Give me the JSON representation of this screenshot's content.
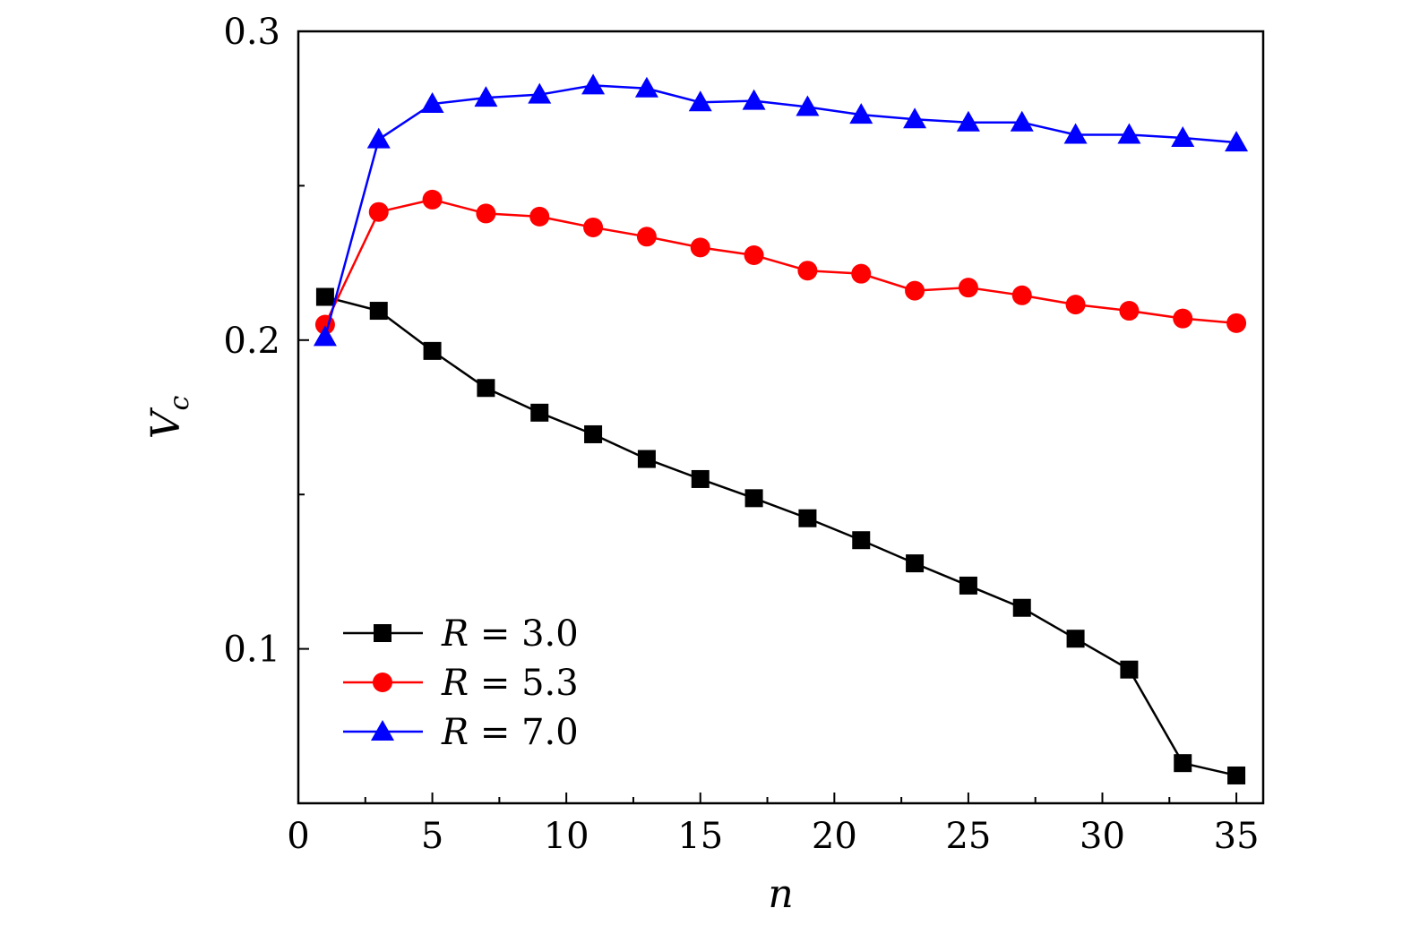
{
  "chart_data": {
    "type": "line",
    "xlabel": "n",
    "ylabel": "V",
    "ylabel_sub": "c",
    "xlim": [
      0,
      36
    ],
    "ylim": [
      0.05,
      0.3
    ],
    "x_ticks": [
      0,
      5,
      10,
      15,
      20,
      25,
      30,
      35
    ],
    "x_tick_labels": [
      "0",
      "5",
      "10",
      "15",
      "20",
      "25",
      "30",
      "35"
    ],
    "y_ticks": [
      0.1,
      0.2,
      0.3
    ],
    "y_tick_labels": [
      "0.1",
      "0.2",
      "0.3"
    ],
    "x_minor_ticks": [
      2.5,
      7.5,
      12.5,
      17.5,
      22.5,
      27.5,
      32.5
    ],
    "y_minor_ticks": [
      0.15,
      0.25
    ],
    "grid": false,
    "legend_position": "bottom-left",
    "x": [
      1,
      3,
      5,
      7,
      9,
      11,
      13,
      15,
      17,
      19,
      21,
      23,
      25,
      27,
      29,
      31,
      33,
      35
    ],
    "series": [
      {
        "name": "R = 3.0",
        "legend_var": "R",
        "legend_value": "3.0",
        "color": "#000000",
        "marker": "square",
        "values": [
          0.214,
          0.2095,
          0.1965,
          0.1845,
          0.1765,
          0.1695,
          0.1615,
          0.155,
          0.1488,
          0.1423,
          0.1352,
          0.1277,
          0.1205,
          0.1133,
          0.1033,
          0.0933,
          0.063,
          0.059
        ]
      },
      {
        "name": "R = 5.3",
        "legend_var": "R",
        "legend_value": "5.3",
        "color": "#ff0000",
        "marker": "circle",
        "values": [
          0.205,
          0.2415,
          0.2455,
          0.241,
          0.24,
          0.2365,
          0.2335,
          0.23,
          0.2275,
          0.2225,
          0.2215,
          0.216,
          0.217,
          0.2145,
          0.2115,
          0.2095,
          0.207,
          0.2055
        ]
      },
      {
        "name": "R = 7.0",
        "legend_var": "R",
        "legend_value": "7.0",
        "color": "#0000ff",
        "marker": "triangle",
        "values": [
          0.201,
          0.265,
          0.2765,
          0.2785,
          0.2795,
          0.2825,
          0.2815,
          0.277,
          0.2775,
          0.2755,
          0.273,
          0.2715,
          0.2705,
          0.2705,
          0.2665,
          0.2665,
          0.2655,
          0.264
        ]
      }
    ]
  }
}
